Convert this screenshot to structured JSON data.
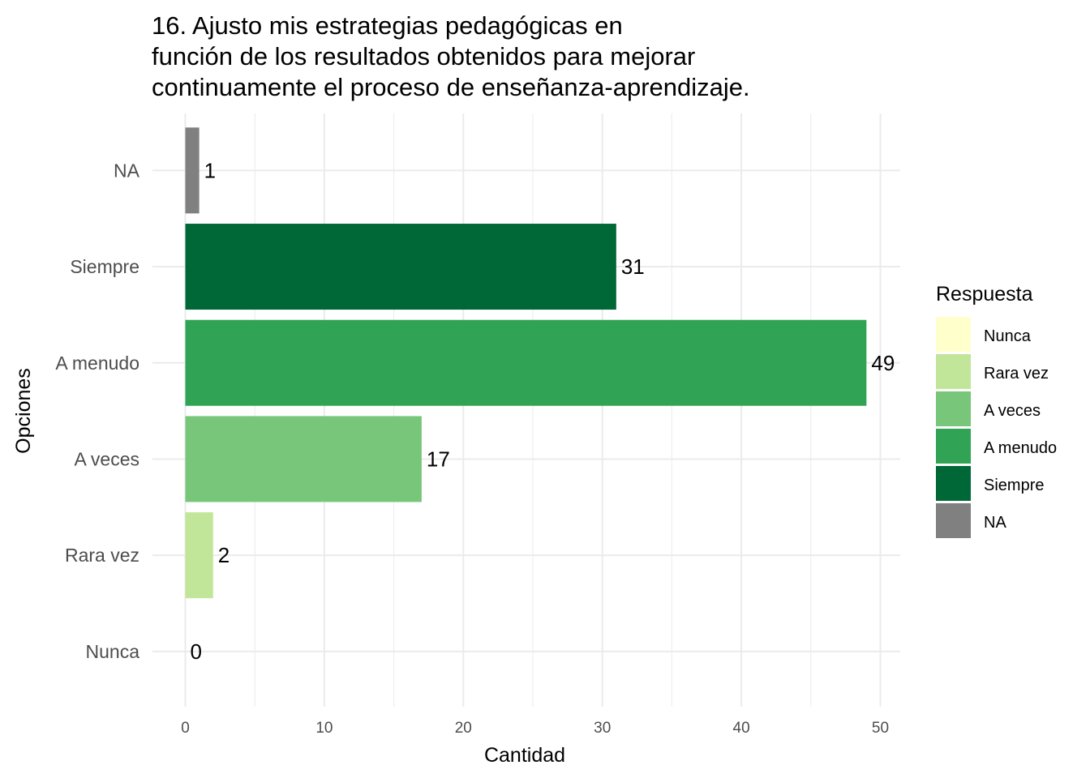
{
  "chart_data": {
    "type": "bar",
    "orientation": "horizontal",
    "title_lines": [
      "16. Ajusto mis estrategias pedagógicas en",
      "función de los resultados obtenidos para mejorar",
      "continuamente el proceso de enseñanza-aprendizaje."
    ],
    "xlabel": "Cantidad",
    "ylabel": "Opciones",
    "categories": [
      "Nunca",
      "Rara vez",
      "A veces",
      "A menudo",
      "Siempre",
      "NA"
    ],
    "values": [
      0,
      2,
      17,
      49,
      31,
      1
    ],
    "colors": [
      "#FFFFCC",
      "#C2E699",
      "#78C679",
      "#31A354",
      "#006837",
      "#808080"
    ],
    "xlim": [
      0,
      51.5
    ],
    "x_ticks": [
      0,
      10,
      20,
      30,
      40,
      50
    ],
    "grid": true,
    "legend": {
      "title": "Respuesta",
      "position": "right",
      "entries": [
        "Nunca",
        "Rara vez",
        "A veces",
        "A menudo",
        "Siempre",
        "NA"
      ]
    }
  }
}
